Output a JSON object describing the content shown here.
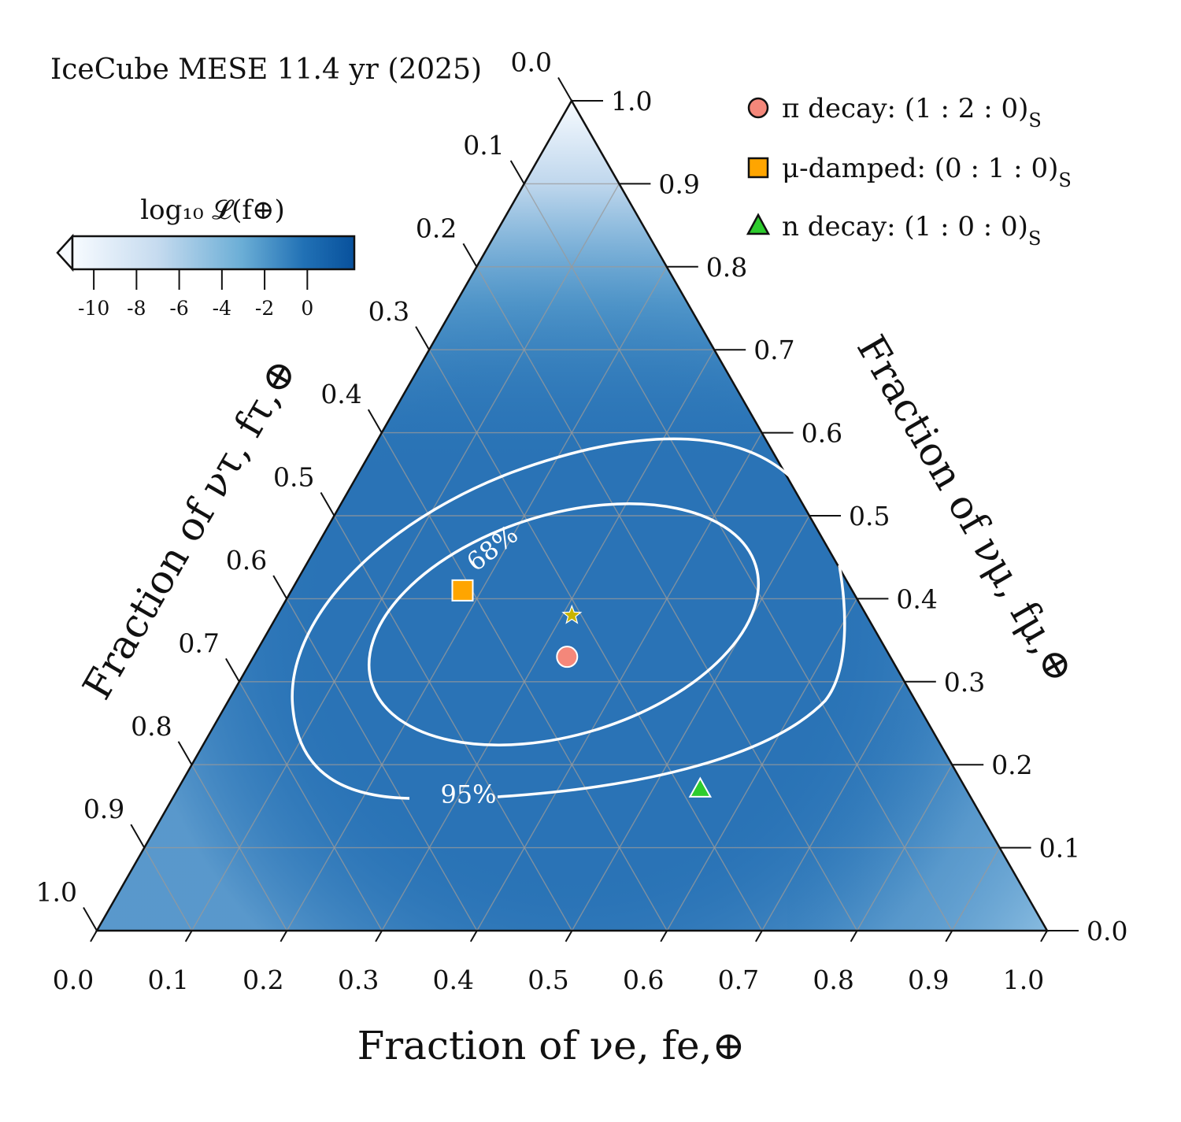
{
  "title": "IceCube MESE 11.4 yr (2025)",
  "colorbar": {
    "label": "log₁₀ 𝓛(f⊕)",
    "ticks": [
      "-10",
      "-8",
      "-6",
      "-4",
      "-2",
      "0"
    ],
    "tick_values": [
      -10,
      -8,
      -6,
      -4,
      -2,
      0
    ],
    "range": [
      -11,
      2.2
    ],
    "colors": [
      "#f7fbff",
      "#c6dbef",
      "#6baed6",
      "#2171b5",
      "#08519c"
    ]
  },
  "legend": [
    {
      "label": "π decay: (1 : 2 : 0)",
      "sub": "S",
      "marker": "circle",
      "color": "#f4877a"
    },
    {
      "label": "μ-damped: (0 : 1 : 0)",
      "sub": "S",
      "marker": "square",
      "color": "#ffa500"
    },
    {
      "label": "n decay: (1 : 0 : 0)",
      "sub": "S",
      "marker": "triangle",
      "color": "#2ecc2e"
    }
  ],
  "chart_data": {
    "type": "ternary",
    "title": "IceCube MESE 11.4 yr (2025)",
    "axes": {
      "bottom": {
        "label": "Fraction of νe, fe,⊕",
        "quantity": "fe",
        "range": [
          0,
          1
        ]
      },
      "right": {
        "label": "Fraction of νμ, fμ,⊕",
        "quantity": "fmu",
        "range": [
          0,
          1
        ]
      },
      "left": {
        "label": "Fraction of ντ, fτ,⊕",
        "quantity": "ftau",
        "range": [
          0,
          1
        ]
      }
    },
    "tick_labels": [
      "0.0",
      "0.1",
      "0.2",
      "0.3",
      "0.4",
      "0.5",
      "0.6",
      "0.7",
      "0.8",
      "0.9",
      "1.0"
    ],
    "grid": true,
    "best_fit": {
      "fe": 0.31,
      "fmu": 0.38,
      "ftau": 0.31,
      "marker": "star",
      "color": "#c8b400"
    },
    "points": [
      {
        "name": "π decay",
        "fe": 0.33,
        "fmu": 0.33,
        "ftau": 0.34,
        "marker": "circle",
        "color": "#f4877a"
      },
      {
        "name": "μ-damped",
        "fe": 0.18,
        "fmu": 0.41,
        "ftau": 0.41,
        "marker": "square",
        "color": "#ffa500"
      },
      {
        "name": "n decay",
        "fe": 0.55,
        "fmu": 0.17,
        "ftau": 0.28,
        "marker": "triangle",
        "color": "#2ecc2e"
      }
    ],
    "contours": [
      {
        "level": "68%",
        "color": "#ffffff",
        "label_at": {
          "fe": 0.17,
          "fmu": 0.5
        }
      },
      {
        "level": "95%",
        "color": "#ffffff",
        "label_at": {
          "fe": 0.4,
          "fmu": 0.16
        }
      }
    ]
  }
}
